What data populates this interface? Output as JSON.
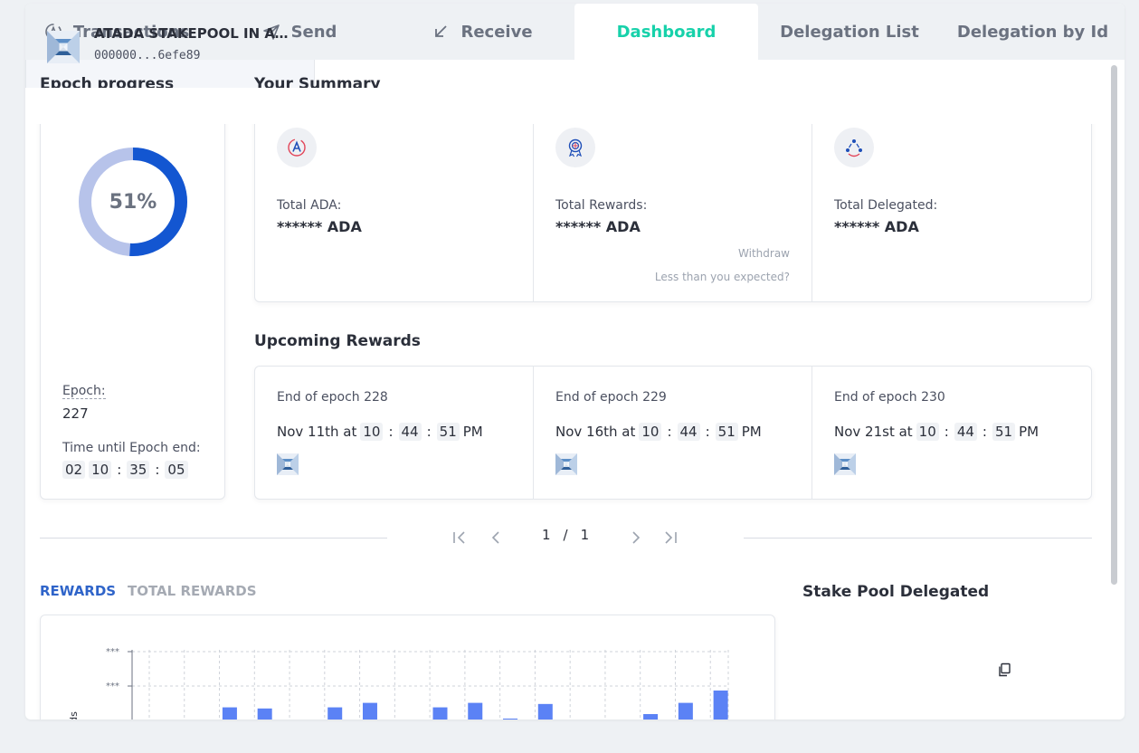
{
  "tabs": [
    {
      "label": "Transactions",
      "icon": "ada-icon"
    },
    {
      "label": "Send",
      "icon": "send-icon"
    },
    {
      "label": "Receive",
      "icon": "receive-icon"
    },
    {
      "label": "Dashboard",
      "icon": ""
    },
    {
      "label": "Delegation List",
      "icon": ""
    },
    {
      "label": "Delegation by Id",
      "icon": ""
    }
  ],
  "active_tab": "Dashboard",
  "colors": {
    "accent": "#17d1aa",
    "ring": "#1356d1",
    "ring_track": "#b7c3ea",
    "bar": "#5b82f5",
    "link_blue": "#2f64c9"
  },
  "epoch": {
    "title": "Epoch progress",
    "progress_text": "51%",
    "progress": 0.51,
    "epoch_label": "Epoch:",
    "epoch_value": "227",
    "time_label": "Time until Epoch end:",
    "countdown": [
      "02",
      "10",
      "35",
      "05"
    ]
  },
  "summary": {
    "title": "Your Summary",
    "cards": [
      {
        "label": "Total ADA:",
        "value": "****** ADA",
        "icon": "ada-coin-icon"
      },
      {
        "label": "Total Rewards:",
        "value": "****** ADA",
        "icon": "rewards-badge-icon",
        "withdraw": "Withdraw",
        "less": "Less than you expected?"
      },
      {
        "label": "Total Delegated:",
        "value": "****** ADA",
        "icon": "delegation-network-icon"
      }
    ]
  },
  "upcoming": {
    "title": "Upcoming Rewards",
    "items": [
      {
        "title": "End of epoch 228",
        "date": "Nov 11th at",
        "h": "10",
        "m": "44",
        "s": "51",
        "ampm": "PM"
      },
      {
        "title": "End of epoch 229",
        "date": "Nov 16th at",
        "h": "10",
        "m": "44",
        "s": "51",
        "ampm": "PM"
      },
      {
        "title": "End of epoch 230",
        "date": "Nov 21st at",
        "h": "10",
        "m": "44",
        "s": "51",
        "ampm": "PM"
      }
    ]
  },
  "pagination": {
    "current": "1",
    "sep": "/",
    "total": "1"
  },
  "chart_tabs": {
    "rewards": "REWARDS",
    "total": "TOTAL REWARDS"
  },
  "chart_data": {
    "type": "bar",
    "ytick_labels": [
      "***",
      "***"
    ],
    "ylabel": "ards",
    "values": [
      0,
      0,
      0.62,
      0.6,
      0.38,
      0.62,
      0.7,
      0.28,
      0.62,
      0.7,
      0.42,
      0.68,
      0.12,
      0.02,
      0.5,
      0.7,
      0.92
    ],
    "grid": true
  },
  "pool": {
    "title": "Stake Pool Delegated",
    "name": "ATADA STAKEPOOL IN AUSTRIA",
    "id": "000000...6efe89"
  }
}
